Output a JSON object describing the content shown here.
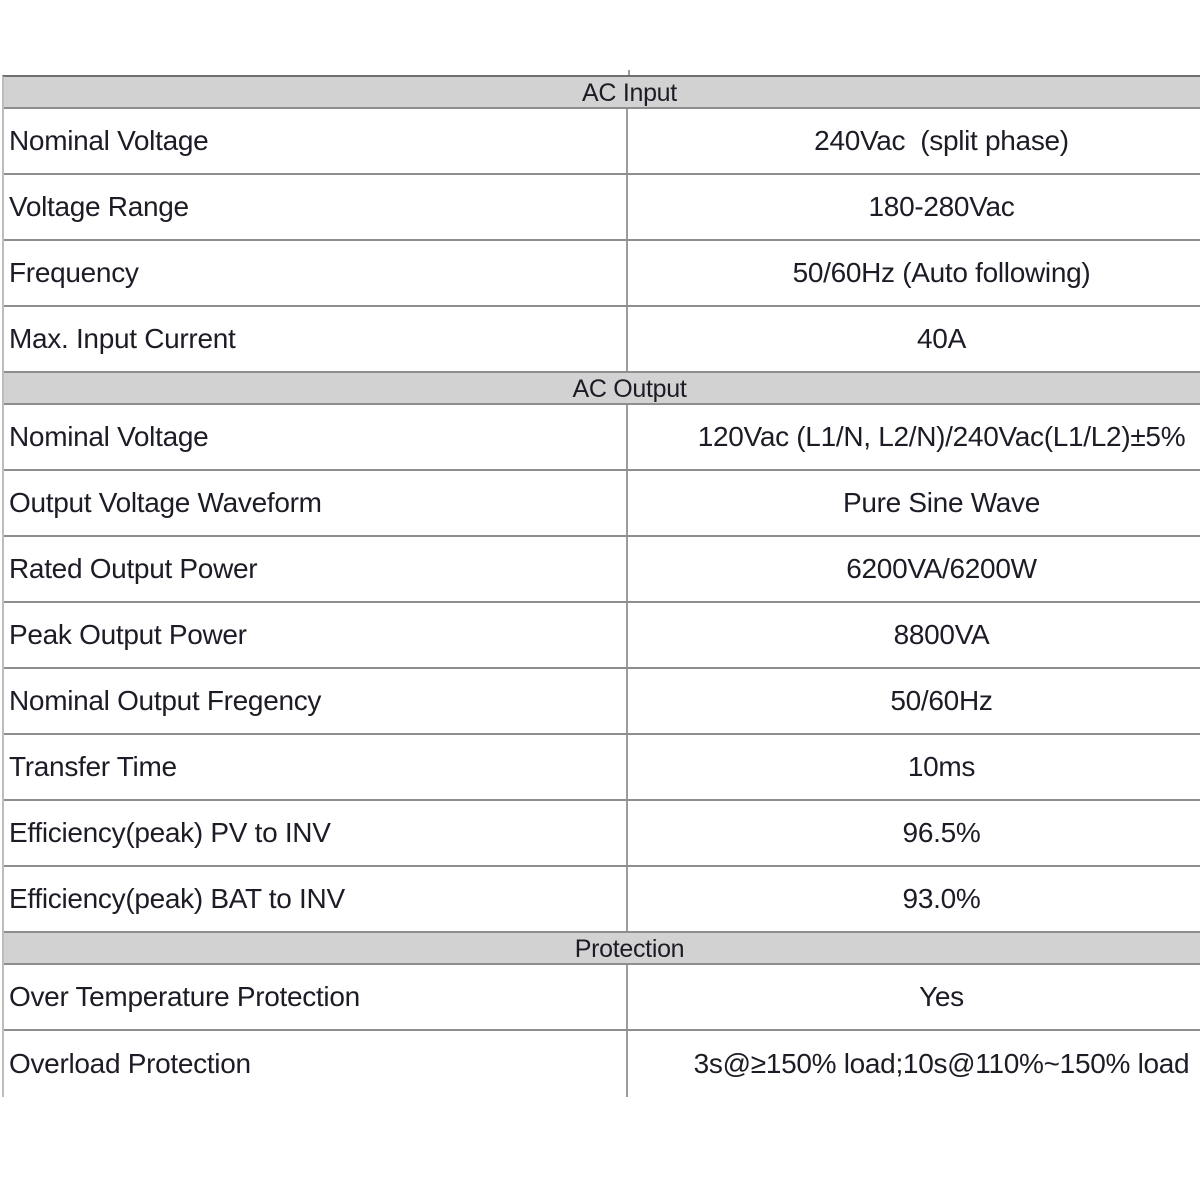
{
  "style": {
    "header_bg": "#d2d2d2",
    "text_color": "#1c1c26",
    "row_border": "#8e8e8e",
    "outer_border": "#6f6f6f",
    "divider": "#9c9c9c",
    "left_border": "#bdbdbd",
    "page_bg": "#ffffff"
  },
  "table": {
    "sections": [
      {
        "header": "AC Input",
        "rows": [
          {
            "label": "Nominal Voltage",
            "value": "240Vac  (split phase)"
          },
          {
            "label": "Voltage Range",
            "value": "180-280Vac"
          },
          {
            "label": "Frequency",
            "value": "50/60Hz (Auto following)"
          },
          {
            "label": "Max. Input Current",
            "value": "40A"
          }
        ]
      },
      {
        "header": "AC Output",
        "rows": [
          {
            "label": "Nominal Voltage",
            "value": "120Vac (L1/N, L2/N)/240Vac(L1/L2)±5%"
          },
          {
            "label": "Output Voltage Waveform",
            "value": "Pure Sine Wave"
          },
          {
            "label": "Rated Output Power",
            "value": "6200VA/6200W"
          },
          {
            "label": "Peak Output Power",
            "value": "8800VA"
          },
          {
            "label": "Nominal Output Fregency",
            "value": "50/60Hz"
          },
          {
            "label": "Transfer Time",
            "value": "10ms"
          },
          {
            "label": "Efficiency(peak) PV to INV",
            "value": "96.5%"
          },
          {
            "label": "Efficiency(peak) BAT to INV",
            "value": "93.0%"
          }
        ]
      },
      {
        "header": "Protection",
        "rows": [
          {
            "label": "Over Temperature Protection",
            "value": "Yes"
          },
          {
            "label": "Overload Protection",
            "value": "3s@≥150% load;10s@110%~150% load"
          }
        ]
      }
    ]
  }
}
